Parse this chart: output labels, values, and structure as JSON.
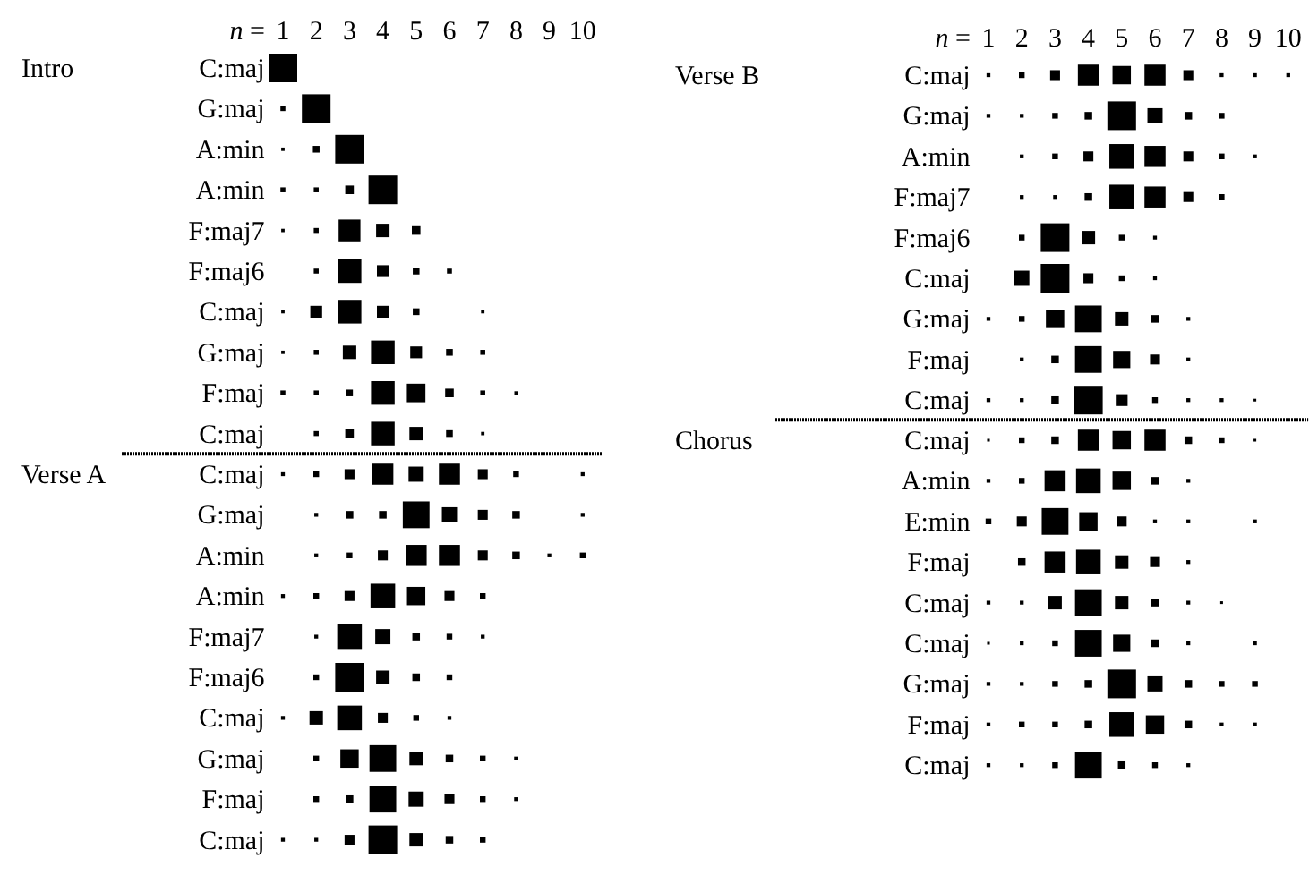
{
  "chart_data": [
    {
      "type": "bubble",
      "orientation": "horizontal",
      "marker": "square",
      "title": "Intro",
      "xlabel": "n =",
      "xlim": [
        1,
        10
      ],
      "xticks": [
        1,
        2,
        3,
        4,
        5,
        6,
        7,
        8,
        9,
        10
      ],
      "categories": [
        "C:maj",
        "G:maj",
        "A:min",
        "A:min",
        "F:maj7",
        "F:maj6",
        "C:maj",
        "G:maj",
        "F:maj",
        "C:maj"
      ],
      "series": [
        {
          "color": "#000000",
          "values": [
            1,
            1,
            1,
            1,
            1,
            null,
            1,
            1,
            1,
            null
          ],
          "sizes": [
            1,
            0.03,
            0.014,
            0.03,
            0.014,
            null,
            0.014,
            0.014,
            0.03,
            null
          ]
        },
        {
          "color": "#000000",
          "values": [
            null,
            2,
            2,
            2,
            2,
            2,
            2,
            2,
            2,
            2
          ],
          "sizes": [
            null,
            1,
            0.055,
            0.03,
            0.03,
            0.03,
            0.17,
            0.03,
            0.03,
            0.03
          ]
        },
        {
          "color": "#000000",
          "values": [
            null,
            null,
            3,
            3,
            3,
            3,
            3,
            3,
            3,
            3
          ],
          "sizes": [
            null,
            null,
            1,
            0.09,
            0.58,
            0.68,
            0.68,
            0.22,
            0.055,
            0.09
          ]
        },
        {
          "color": "#000000",
          "values": [
            null,
            null,
            null,
            4,
            4,
            4,
            4,
            4,
            4,
            4
          ],
          "sizes": [
            null,
            null,
            null,
            1,
            0.22,
            0.17,
            0.17,
            0.68,
            0.68,
            0.68
          ]
        },
        {
          "color": "#000000",
          "values": [
            null,
            null,
            null,
            null,
            5,
            5,
            5,
            5,
            5,
            5
          ],
          "sizes": [
            null,
            null,
            null,
            null,
            0.09,
            0.055,
            0.055,
            0.17,
            0.42,
            0.22
          ]
        },
        {
          "color": "#000000",
          "values": [
            null,
            null,
            null,
            null,
            null,
            6,
            null,
            6,
            6,
            6
          ],
          "sizes": [
            null,
            null,
            null,
            null,
            null,
            0.03,
            null,
            0.055,
            0.09,
            0.055
          ]
        },
        {
          "color": "#000000",
          "values": [
            null,
            null,
            null,
            null,
            null,
            null,
            7,
            7,
            7,
            7
          ],
          "sizes": [
            null,
            null,
            null,
            null,
            null,
            null,
            0.014,
            0.03,
            0.03,
            0.014
          ]
        },
        {
          "color": "#000000",
          "values": [
            null,
            null,
            null,
            null,
            null,
            null,
            null,
            null,
            8,
            null
          ],
          "sizes": [
            null,
            null,
            null,
            null,
            null,
            null,
            null,
            null,
            0.014,
            null
          ]
        }
      ]
    },
    {
      "type": "bubble",
      "orientation": "horizontal",
      "marker": "square",
      "title": "Verse A",
      "tick_labels": "y",
      "xlim": [
        1,
        10
      ],
      "categories": [
        "C:maj",
        "G:maj",
        "A:min",
        "A:min",
        "F:maj7",
        "F:maj6",
        "C:maj",
        "G:maj",
        "F:maj",
        "C:maj"
      ],
      "series": [
        {
          "color": "#000000",
          "values": [
            1,
            null,
            null,
            1,
            null,
            null,
            1,
            null,
            null,
            1
          ],
          "sizes": [
            0.018,
            null,
            null,
            0.018,
            null,
            null,
            0.018,
            null,
            null,
            0.018
          ]
        },
        {
          "color": "#000000",
          "values": [
            2,
            2,
            2,
            2,
            2,
            2,
            2,
            2,
            2,
            2
          ],
          "sizes": [
            0.04,
            0.018,
            0.018,
            0.04,
            0.018,
            0.04,
            0.22,
            0.04,
            0.04,
            0.018
          ]
        },
        {
          "color": "#000000",
          "values": [
            3,
            3,
            3,
            3,
            3,
            3,
            3,
            3,
            3,
            3
          ],
          "sizes": [
            0.12,
            0.07,
            0.04,
            0.12,
            0.74,
            1,
            0.74,
            0.41,
            0.07,
            0.12
          ]
        },
        {
          "color": "#000000",
          "values": [
            4,
            4,
            4,
            4,
            4,
            4,
            4,
            4,
            4,
            4
          ],
          "sizes": [
            0.54,
            0.07,
            0.12,
            0.74,
            0.28,
            0.22,
            0.12,
            0.87,
            0.87,
            1
          ]
        },
        {
          "color": "#000000",
          "values": [
            5,
            5,
            5,
            5,
            5,
            5,
            5,
            5,
            5,
            5
          ],
          "sizes": [
            0.28,
            0.87,
            0.54,
            0.41,
            0.07,
            0.07,
            0.04,
            0.22,
            0.28,
            0.22
          ]
        },
        {
          "color": "#000000",
          "values": [
            6,
            6,
            6,
            6,
            6,
            6,
            6,
            6,
            6,
            6
          ],
          "sizes": [
            0.54,
            0.28,
            0.54,
            0.12,
            0.04,
            0.04,
            0.018,
            0.07,
            0.12,
            0.07
          ]
        },
        {
          "color": "#000000",
          "values": [
            7,
            7,
            7,
            7,
            7,
            null,
            null,
            7,
            7,
            7
          ],
          "sizes": [
            0.12,
            0.12,
            0.12,
            0.04,
            0.018,
            null,
            null,
            0.04,
            0.04,
            0.04
          ]
        },
        {
          "color": "#000000",
          "values": [
            8,
            8,
            8,
            null,
            null,
            null,
            null,
            8,
            8,
            null
          ],
          "sizes": [
            0.04,
            0.07,
            0.07,
            null,
            null,
            null,
            null,
            0.018,
            0.018,
            null
          ]
        },
        {
          "color": "#000000",
          "values": [
            null,
            null,
            9,
            null,
            null,
            null,
            null,
            null,
            null,
            null
          ],
          "sizes": [
            null,
            null,
            0.018,
            null,
            null,
            null,
            null,
            null,
            null,
            null
          ]
        },
        {
          "color": "#000000",
          "values": [
            10,
            10,
            10,
            null,
            null,
            null,
            null,
            null,
            null,
            null
          ],
          "sizes": [
            0.018,
            0.018,
            0.04,
            null,
            null,
            null,
            null,
            null,
            null,
            null
          ]
        }
      ]
    },
    {
      "type": "bubble",
      "orientation": "horizontal",
      "marker": "square",
      "title": "Verse B",
      "xlabel": "n =",
      "xlim": [
        1,
        10
      ],
      "xticks": [
        1,
        2,
        3,
        4,
        5,
        6,
        7,
        8,
        9,
        10
      ],
      "categories": [
        "C:maj",
        "G:maj",
        "A:min",
        "F:maj7",
        "F:maj6",
        "C:maj",
        "G:maj",
        "F:maj",
        "C:maj"
      ],
      "series": [
        {
          "color": "#000000",
          "values": [
            1,
            1,
            null,
            null,
            null,
            null,
            1,
            null,
            1
          ],
          "sizes": [
            0.018,
            0.018,
            null,
            null,
            null,
            null,
            0.018,
            null,
            0.018
          ]
        },
        {
          "color": "#000000",
          "values": [
            2,
            2,
            2,
            2,
            2,
            2,
            2,
            2,
            2
          ],
          "sizes": [
            0.04,
            0.018,
            0.018,
            0.018,
            0.04,
            0.28,
            0.04,
            0.018,
            0.018
          ]
        },
        {
          "color": "#000000",
          "values": [
            3,
            3,
            3,
            3,
            3,
            3,
            3,
            3,
            3
          ],
          "sizes": [
            0.12,
            0.04,
            0.04,
            0.018,
            1,
            1,
            0.41,
            0.07,
            0.07
          ]
        },
        {
          "color": "#000000",
          "values": [
            4,
            4,
            4,
            4,
            4,
            4,
            4,
            4,
            4
          ],
          "sizes": [
            0.54,
            0.07,
            0.12,
            0.07,
            0.22,
            0.12,
            0.87,
            0.87,
            1
          ]
        },
        {
          "color": "#000000",
          "values": [
            5,
            5,
            5,
            5,
            5,
            5,
            5,
            5,
            5
          ],
          "sizes": [
            0.41,
            1,
            0.74,
            0.74,
            0.04,
            0.04,
            0.22,
            0.36,
            0.17
          ]
        },
        {
          "color": "#000000",
          "values": [
            6,
            6,
            6,
            6,
            6,
            6,
            6,
            6,
            6
          ],
          "sizes": [
            0.54,
            0.28,
            0.54,
            0.54,
            0.018,
            0.018,
            0.07,
            0.12,
            0.04
          ]
        },
        {
          "color": "#000000",
          "values": [
            7,
            7,
            7,
            7,
            null,
            null,
            7,
            7,
            7
          ],
          "sizes": [
            0.12,
            0.07,
            0.12,
            0.12,
            null,
            null,
            0.018,
            0.018,
            0.018
          ]
        },
        {
          "color": "#000000",
          "values": [
            8,
            8,
            8,
            8,
            null,
            null,
            null,
            null,
            8
          ],
          "sizes": [
            0.018,
            0.04,
            0.04,
            0.04,
            null,
            null,
            null,
            null,
            0.018
          ]
        },
        {
          "color": "#000000",
          "values": [
            9,
            null,
            9,
            null,
            null,
            null,
            null,
            null,
            9
          ],
          "sizes": [
            0.018,
            null,
            0.018,
            null,
            null,
            null,
            null,
            null,
            0.009
          ]
        },
        {
          "color": "#000000",
          "values": [
            10,
            null,
            null,
            null,
            null,
            null,
            null,
            null,
            null
          ],
          "sizes": [
            0.018,
            null,
            null,
            null,
            null,
            null,
            null,
            null,
            null
          ]
        }
      ]
    },
    {
      "type": "bubble",
      "orientation": "horizontal",
      "marker": "square",
      "title": "Chorus",
      "tick_labels": "y",
      "xlim": [
        1,
        10
      ],
      "categories": [
        "C:maj",
        "A:min",
        "E:min",
        "F:maj",
        "C:maj",
        "C:maj",
        "G:maj",
        "F:maj",
        "C:maj"
      ],
      "series": [
        {
          "color": "#000000",
          "values": [
            1,
            1,
            1,
            null,
            1,
            1,
            1,
            1,
            1
          ],
          "sizes": [
            0.009,
            0.018,
            0.04,
            null,
            0.018,
            0.009,
            0.018,
            0.018,
            0.018
          ]
        },
        {
          "color": "#000000",
          "values": [
            2,
            2,
            2,
            2,
            2,
            2,
            2,
            2,
            2
          ],
          "sizes": [
            0.04,
            0.04,
            0.12,
            0.07,
            0.018,
            0.018,
            0.018,
            0.04,
            0.018
          ]
        },
        {
          "color": "#000000",
          "values": [
            3,
            3,
            3,
            3,
            3,
            3,
            3,
            3,
            3
          ],
          "sizes": [
            0.07,
            0.54,
            0.87,
            0.54,
            0.22,
            0.04,
            0.04,
            0.04,
            0.04
          ]
        },
        {
          "color": "#000000",
          "values": [
            4,
            4,
            4,
            4,
            4,
            4,
            4,
            4,
            4
          ],
          "sizes": [
            0.54,
            0.74,
            0.41,
            0.74,
            0.87,
            0.87,
            0.07,
            0.07,
            0.87
          ]
        },
        {
          "color": "#000000",
          "values": [
            5,
            5,
            5,
            5,
            5,
            5,
            5,
            5,
            5
          ],
          "sizes": [
            0.41,
            0.41,
            0.12,
            0.22,
            0.22,
            0.36,
            1,
            0.74,
            0.07
          ]
        },
        {
          "color": "#000000",
          "values": [
            6,
            6,
            6,
            6,
            6,
            6,
            6,
            6,
            6
          ],
          "sizes": [
            0.54,
            0.07,
            0.018,
            0.12,
            0.07,
            0.07,
            0.28,
            0.41,
            0.04
          ]
        },
        {
          "color": "#000000",
          "values": [
            7,
            7,
            7,
            7,
            7,
            7,
            7,
            7,
            7
          ],
          "sizes": [
            0.07,
            0.018,
            0.018,
            0.018,
            0.018,
            0.018,
            0.07,
            0.07,
            0.018
          ]
        },
        {
          "color": "#000000",
          "values": [
            8,
            null,
            null,
            null,
            8,
            null,
            8,
            8,
            null
          ],
          "sizes": [
            0.04,
            null,
            null,
            null,
            0.009,
            null,
            0.04,
            0.018,
            null
          ]
        },
        {
          "color": "#000000",
          "values": [
            9,
            null,
            9,
            null,
            null,
            9,
            9,
            9,
            null
          ],
          "sizes": [
            0.009,
            null,
            0.018,
            null,
            null,
            0.018,
            0.04,
            0.018,
            null
          ]
        }
      ]
    }
  ]
}
